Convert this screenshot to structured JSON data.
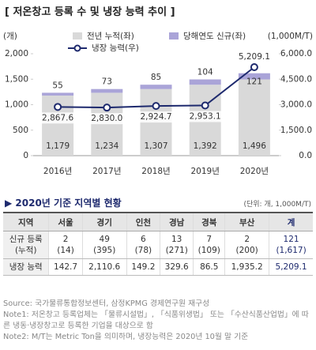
{
  "title": "[ 저온창고 등록 수 및 냉장 능력 추이 ]",
  "chart_data": {
    "type": "bar",
    "stacked": true,
    "y_label": "(개)",
    "y2_label": "(1,000M/T)",
    "categories": [
      "2016년",
      "2017년",
      "2018년",
      "2019년",
      "2020년"
    ],
    "series": [
      {
        "name": "전년 누적(좌)",
        "color": "#d9d9d9",
        "values": [
          1179,
          1234,
          1307,
          1392,
          1496
        ],
        "value_labels": [
          "1,179",
          "1,234",
          "1,307",
          "1,392",
          "1,496"
        ]
      },
      {
        "name": "당해연도 신규(좌)",
        "color": "#aaa4d8",
        "values": [
          55,
          73,
          85,
          104,
          121
        ]
      },
      {
        "name": "냉장 능력(우)",
        "color": "#1e2a6e",
        "type": "line",
        "axis": "y2",
        "values": [
          2867.6,
          2830.0,
          2924.7,
          2953.1,
          5209.1
        ],
        "value_labels": [
          "2,867.6",
          "2,830.0",
          "2,924.7",
          "2,953.1",
          "5,209.1"
        ]
      }
    ],
    "ylim": [
      0,
      2000
    ],
    "yticks": [
      0,
      500,
      {
        "value": 1000,
        "label": "1,000"
      },
      {
        "value": 1500,
        "label": "1,500"
      },
      {
        "value": 2000,
        "label": "2,000"
      }
    ],
    "y2lim": [
      0,
      6000
    ],
    "y2ticks": [
      {
        "value": 0,
        "label": "0.0"
      },
      {
        "value": 1500,
        "label": "1,500.0"
      },
      {
        "value": 3000,
        "label": "3,000.0"
      },
      {
        "value": 4500,
        "label": "4,500.0"
      },
      {
        "value": 6000,
        "label": "6,000.0"
      }
    ]
  },
  "table": {
    "heading": "▶ 2020년 기준 지역별 현황",
    "unit": "(단위: 개, 1,000M/T)",
    "header": [
      "지역",
      "서울",
      "경기",
      "인천",
      "경남",
      "경북",
      "부산",
      "계"
    ],
    "rows": [
      {
        "label": [
          "신규 등록",
          "(누적)"
        ],
        "cells": [
          [
            "2",
            "(14)"
          ],
          [
            "49",
            "(395)"
          ],
          [
            "6",
            "(78)"
          ],
          [
            "13",
            "(271)"
          ],
          [
            "7",
            "(109)"
          ],
          [
            "2",
            "(200)"
          ],
          [
            "121",
            "(1,617)"
          ]
        ]
      },
      {
        "label": [
          "냉장 능력"
        ],
        "cells": [
          [
            "142.7"
          ],
          [
            "2,110.6"
          ],
          [
            "149.2"
          ],
          [
            "329.6"
          ],
          [
            "86.5"
          ],
          [
            "1,935.2"
          ],
          [
            "5,209.1"
          ]
        ]
      }
    ]
  },
  "notes": [
    "Source: 국가물류통합정보센터, 삼정KPMG 경제연구원 재구성",
    "Note1: 저온창고 등록업체는 「물류시설법」, 「식품위생법」 또는 「수산식품산업법」에 따른 냉동·냉장창고로 등록한 기업을 대상으로 함",
    "Note2: M/T는 Metric Ton을 의미하며, 냉장능력은 2020년 10월 말 기준"
  ]
}
